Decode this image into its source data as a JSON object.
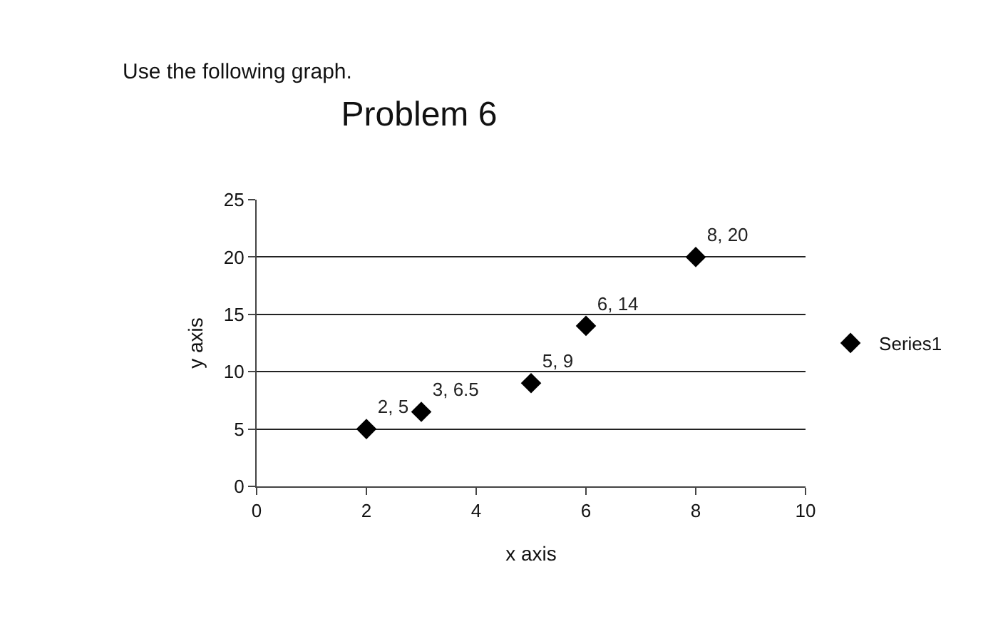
{
  "chart_data": {
    "type": "scatter",
    "title": "Problem 6",
    "xlabel": "x axis",
    "ylabel": "y axis",
    "annotations": [
      "Use the following graph."
    ],
    "series": [
      {
        "name": "Series1",
        "color": "#000000",
        "x": [
          2,
          3,
          5,
          6,
          8
        ],
        "values": [
          5,
          6.5,
          9,
          14,
          20
        ],
        "value_labels": [
          "2, 5",
          "3, 6.5",
          "5, 9",
          "6, 14",
          "8, 20"
        ]
      }
    ],
    "xlim": [
      0,
      10
    ],
    "xticks": [
      0,
      2,
      4,
      6,
      8,
      10
    ],
    "ylim": [
      0,
      25
    ],
    "yticks": [
      0,
      5,
      10,
      15,
      20,
      25
    ],
    "grid": "y",
    "legend": "right",
    "marker": "diamond"
  }
}
